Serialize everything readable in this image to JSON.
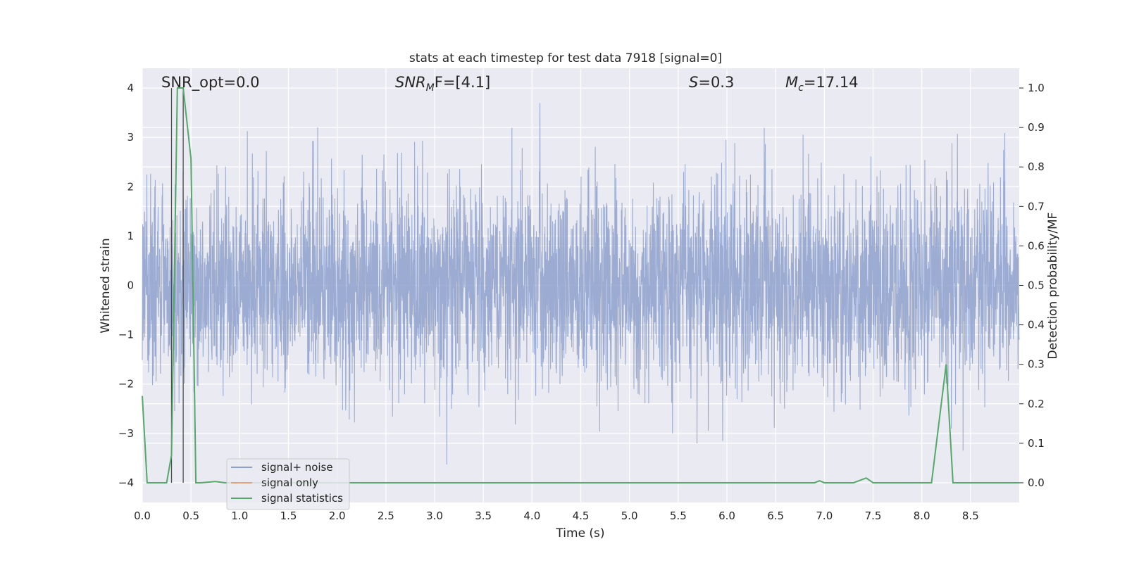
{
  "chart_data": {
    "type": "line",
    "title": "stats at each timestep for test data 7918 [signal=0]",
    "xlabel": "Time (s)",
    "ylabel": "Whitened strain",
    "ylabel_right": "Detection probability/MF",
    "xlim": [
      0.0,
      9.0
    ],
    "ylim": [
      -4.4,
      4.4
    ],
    "ylim_right": [
      -0.05,
      1.05
    ],
    "x_ticks": [
      "0.0",
      "0.5",
      "1.0",
      "1.5",
      "2.0",
      "2.5",
      "3.0",
      "3.5",
      "4.0",
      "4.5",
      "5.0",
      "5.5",
      "6.0",
      "6.5",
      "7.0",
      "7.5",
      "8.0",
      "8.5"
    ],
    "y_ticks": [
      "−4",
      "−3",
      "−2",
      "−1",
      "0",
      "1",
      "2",
      "3",
      "4"
    ],
    "y_right_ticks": [
      "0.0",
      "0.1",
      "0.2",
      "0.3",
      "0.4",
      "0.5",
      "0.6",
      "0.7",
      "0.8",
      "0.9",
      "1.0"
    ],
    "grid": true,
    "legend": {
      "position": "lower-left",
      "entries": [
        "signal+ noise",
        "signal only",
        "signal statistics"
      ]
    },
    "annotations": {
      "snr_opt": "SNR_opt=0.0",
      "snr_mf_label": "SNR",
      "snr_mf_sub": "M",
      "snr_mf_rest": "F=[4.1]",
      "s_label": "S",
      "s_rest": "=0.3",
      "mc_label": "M",
      "mc_sub": "c",
      "mc_rest": "=17.14"
    },
    "vertical_markers": [
      0.3,
      0.42
    ],
    "series": [
      {
        "name": "signal+ noise",
        "axis": "left",
        "color": "#8da0cb",
        "style": "dense whitened noise, amplitude ~ ±2.4 with spikes to ±4, sampled across 0–9 s"
      },
      {
        "name": "signal only",
        "axis": "left",
        "color": "#e5a07a",
        "style": "flat at 0 (signal=0)"
      },
      {
        "name": "signal statistics",
        "axis": "right",
        "color": "#55a868",
        "x": [
          0.0,
          0.05,
          0.1,
          0.25,
          0.3,
          0.36,
          0.42,
          0.5,
          0.55,
          0.6,
          0.75,
          0.85,
          1.0,
          6.9,
          6.95,
          7.0,
          7.3,
          7.43,
          7.5,
          8.1,
          8.2,
          8.25,
          8.32,
          8.4,
          9.0
        ],
        "values": [
          0.22,
          0.0,
          0.0,
          0.0,
          0.07,
          1.0,
          1.0,
          0.82,
          0.0,
          0.0,
          0.003,
          0.0,
          0.0,
          0.0,
          0.005,
          0.0,
          0.0,
          0.012,
          0.0,
          0.0,
          0.2,
          0.3,
          0.0,
          0.0,
          0.0
        ]
      }
    ]
  }
}
